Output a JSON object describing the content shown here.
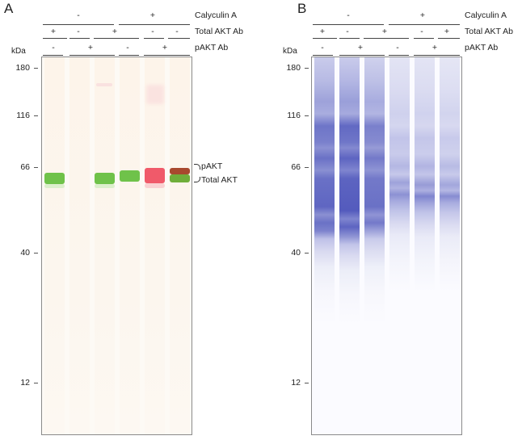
{
  "panels": {
    "a": {
      "letter": "A"
    },
    "b": {
      "letter": "B"
    }
  },
  "conditions": {
    "calyculin_label": "Calyculin A",
    "total_akt_label": "Total AKT Ab",
    "pakt_label": "pAKT Ab",
    "calyculin_groups": [
      "-",
      "+"
    ],
    "total_akt": [
      "+",
      "-",
      "+",
      "-",
      "-",
      "+"
    ],
    "pakt": [
      "-",
      "+",
      "+",
      "-",
      "+",
      "+"
    ]
  },
  "axis": {
    "unit_label": "kDa",
    "markers": [
      "180",
      "116",
      "66",
      "40",
      "12"
    ]
  },
  "band_labels": {
    "pakt": "pAKT",
    "total_akt": "Total AKT"
  },
  "colors": {
    "total_akt_band": "#6fc24a",
    "pakt_band": "#f05a6a",
    "lane_b_band": "#5a63c0"
  }
}
